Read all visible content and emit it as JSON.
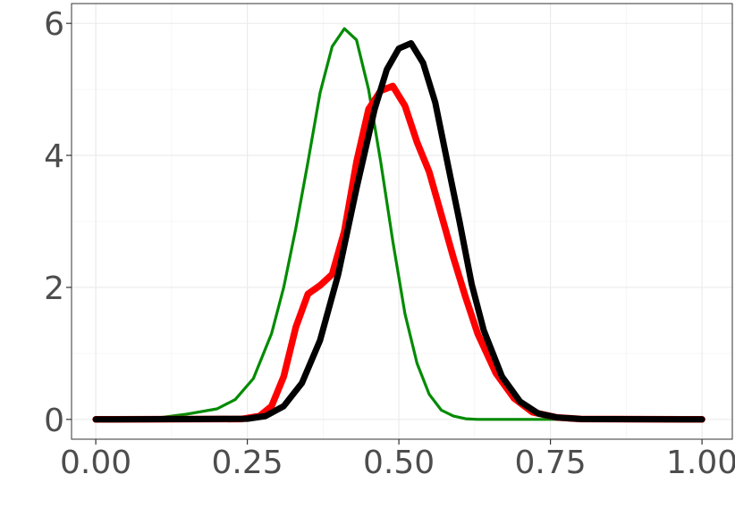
{
  "chart_data": {
    "type": "line",
    "title": "",
    "xlabel": "",
    "ylabel": "",
    "xlim": [
      -0.04,
      1.05
    ],
    "ylim": [
      -0.3,
      6.3
    ],
    "x_ticks": [
      0,
      0.25,
      0.5,
      0.75,
      1
    ],
    "x_tick_labels": [
      "0.00",
      "0.25",
      "0.50",
      "0.75",
      "1.00"
    ],
    "y_ticks": [
      0,
      2,
      4,
      6
    ],
    "y_tick_labels": [
      "0",
      "2",
      "4",
      "6"
    ],
    "grid": true,
    "legend": "none",
    "series": [
      {
        "color": "#008b00",
        "x": [
          0,
          0.1,
          0.15,
          0.2,
          0.23,
          0.26,
          0.29,
          0.31,
          0.33,
          0.35,
          0.37,
          0.39,
          0.41,
          0.43,
          0.45,
          0.47,
          0.49,
          0.51,
          0.53,
          0.55,
          0.57,
          0.59,
          0.61,
          0.63,
          0.7,
          1.0
        ],
        "y": [
          0,
          0.02,
          0.08,
          0.16,
          0.3,
          0.62,
          1.3,
          2.0,
          2.9,
          3.9,
          4.95,
          5.65,
          5.92,
          5.75,
          5.0,
          3.9,
          2.7,
          1.6,
          0.85,
          0.38,
          0.14,
          0.05,
          0.01,
          0,
          0,
          0
        ]
      },
      {
        "color": "#ff0000",
        "x": [
          0,
          0.24,
          0.27,
          0.29,
          0.31,
          0.33,
          0.35,
          0.37,
          0.39,
          0.41,
          0.43,
          0.45,
          0.47,
          0.49,
          0.51,
          0.53,
          0.55,
          0.57,
          0.59,
          0.61,
          0.63,
          0.66,
          0.69,
          0.72,
          0.76,
          0.8,
          1.0
        ],
        "y": [
          0,
          0.005,
          0.05,
          0.2,
          0.65,
          1.4,
          1.9,
          2.03,
          2.2,
          2.85,
          3.9,
          4.7,
          4.98,
          5.05,
          4.75,
          4.2,
          3.75,
          3.1,
          2.45,
          1.85,
          1.3,
          0.7,
          0.32,
          0.11,
          0.03,
          0.005,
          0
        ]
      },
      {
        "color": "#000000",
        "x": [
          0,
          0.25,
          0.28,
          0.31,
          0.34,
          0.37,
          0.4,
          0.43,
          0.46,
          0.48,
          0.5,
          0.52,
          0.54,
          0.56,
          0.58,
          0.6,
          0.62,
          0.64,
          0.67,
          0.7,
          0.73,
          0.76,
          0.8,
          1.0
        ],
        "y": [
          0,
          0.01,
          0.05,
          0.2,
          0.55,
          1.2,
          2.2,
          3.5,
          4.7,
          5.3,
          5.62,
          5.7,
          5.4,
          4.8,
          3.9,
          3.0,
          2.05,
          1.35,
          0.65,
          0.27,
          0.09,
          0.03,
          0.005,
          0
        ]
      }
    ]
  },
  "style": {
    "series_stroke_widths": [
      3.2,
      7.5,
      7
    ]
  }
}
